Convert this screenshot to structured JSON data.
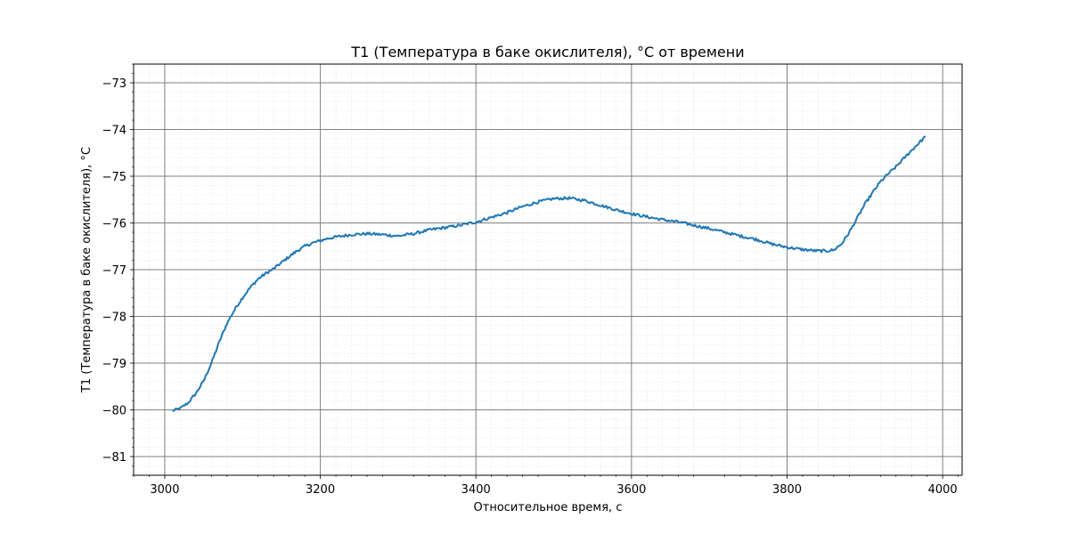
{
  "chart_data": {
    "type": "line",
    "title": "T1 (Температура в баке окислителя), °C от времени",
    "xlabel": "Относительное время, с",
    "ylabel": "T1 (Температура в баке окислителя), °C",
    "xlim": [
      2960,
      4025
    ],
    "ylim": [
      -81.4,
      -72.6
    ],
    "x_ticks": [
      3000,
      3200,
      3400,
      3600,
      3800,
      4000
    ],
    "x_tick_labels": [
      "3000",
      "3200",
      "3400",
      "3600",
      "3800",
      "4000"
    ],
    "y_ticks": [
      -81,
      -80,
      -79,
      -78,
      -77,
      -76,
      -75,
      -74,
      -73
    ],
    "y_tick_labels": [
      "−81",
      "−80",
      "−79",
      "−78",
      "−77",
      "−76",
      "−75",
      "−74",
      "−73"
    ],
    "grid": {
      "major": true,
      "minor": true
    },
    "series": [
      {
        "color": "#1f77b4",
        "x": [
          3010,
          3020,
          3030,
          3040,
          3050,
          3060,
          3070,
          3080,
          3090,
          3100,
          3110,
          3120,
          3130,
          3140,
          3150,
          3160,
          3170,
          3180,
          3190,
          3200,
          3210,
          3220,
          3240,
          3260,
          3280,
          3300,
          3320,
          3340,
          3360,
          3380,
          3400,
          3420,
          3440,
          3460,
          3480,
          3500,
          3520,
          3540,
          3560,
          3580,
          3600,
          3620,
          3640,
          3660,
          3680,
          3700,
          3720,
          3740,
          3760,
          3780,
          3800,
          3820,
          3840,
          3850,
          3860,
          3870,
          3880,
          3890,
          3900,
          3910,
          3920,
          3930,
          3940,
          3950,
          3960,
          3970,
          3978
        ],
        "y": [
          -80.02,
          -79.97,
          -79.85,
          -79.65,
          -79.38,
          -79.0,
          -78.55,
          -78.15,
          -77.85,
          -77.6,
          -77.38,
          -77.2,
          -77.08,
          -76.98,
          -76.85,
          -76.72,
          -76.6,
          -76.5,
          -76.43,
          -76.38,
          -76.33,
          -76.3,
          -76.25,
          -76.23,
          -76.25,
          -76.28,
          -76.23,
          -76.15,
          -76.1,
          -76.05,
          -75.98,
          -75.88,
          -75.78,
          -75.65,
          -75.55,
          -75.48,
          -75.47,
          -75.52,
          -75.62,
          -75.72,
          -75.8,
          -75.87,
          -75.93,
          -75.98,
          -76.05,
          -76.12,
          -76.2,
          -76.28,
          -76.35,
          -76.45,
          -76.52,
          -76.57,
          -76.6,
          -76.6,
          -76.58,
          -76.45,
          -76.2,
          -75.9,
          -75.6,
          -75.35,
          -75.12,
          -74.95,
          -74.8,
          -74.62,
          -74.45,
          -74.28,
          -74.15
        ]
      }
    ]
  }
}
